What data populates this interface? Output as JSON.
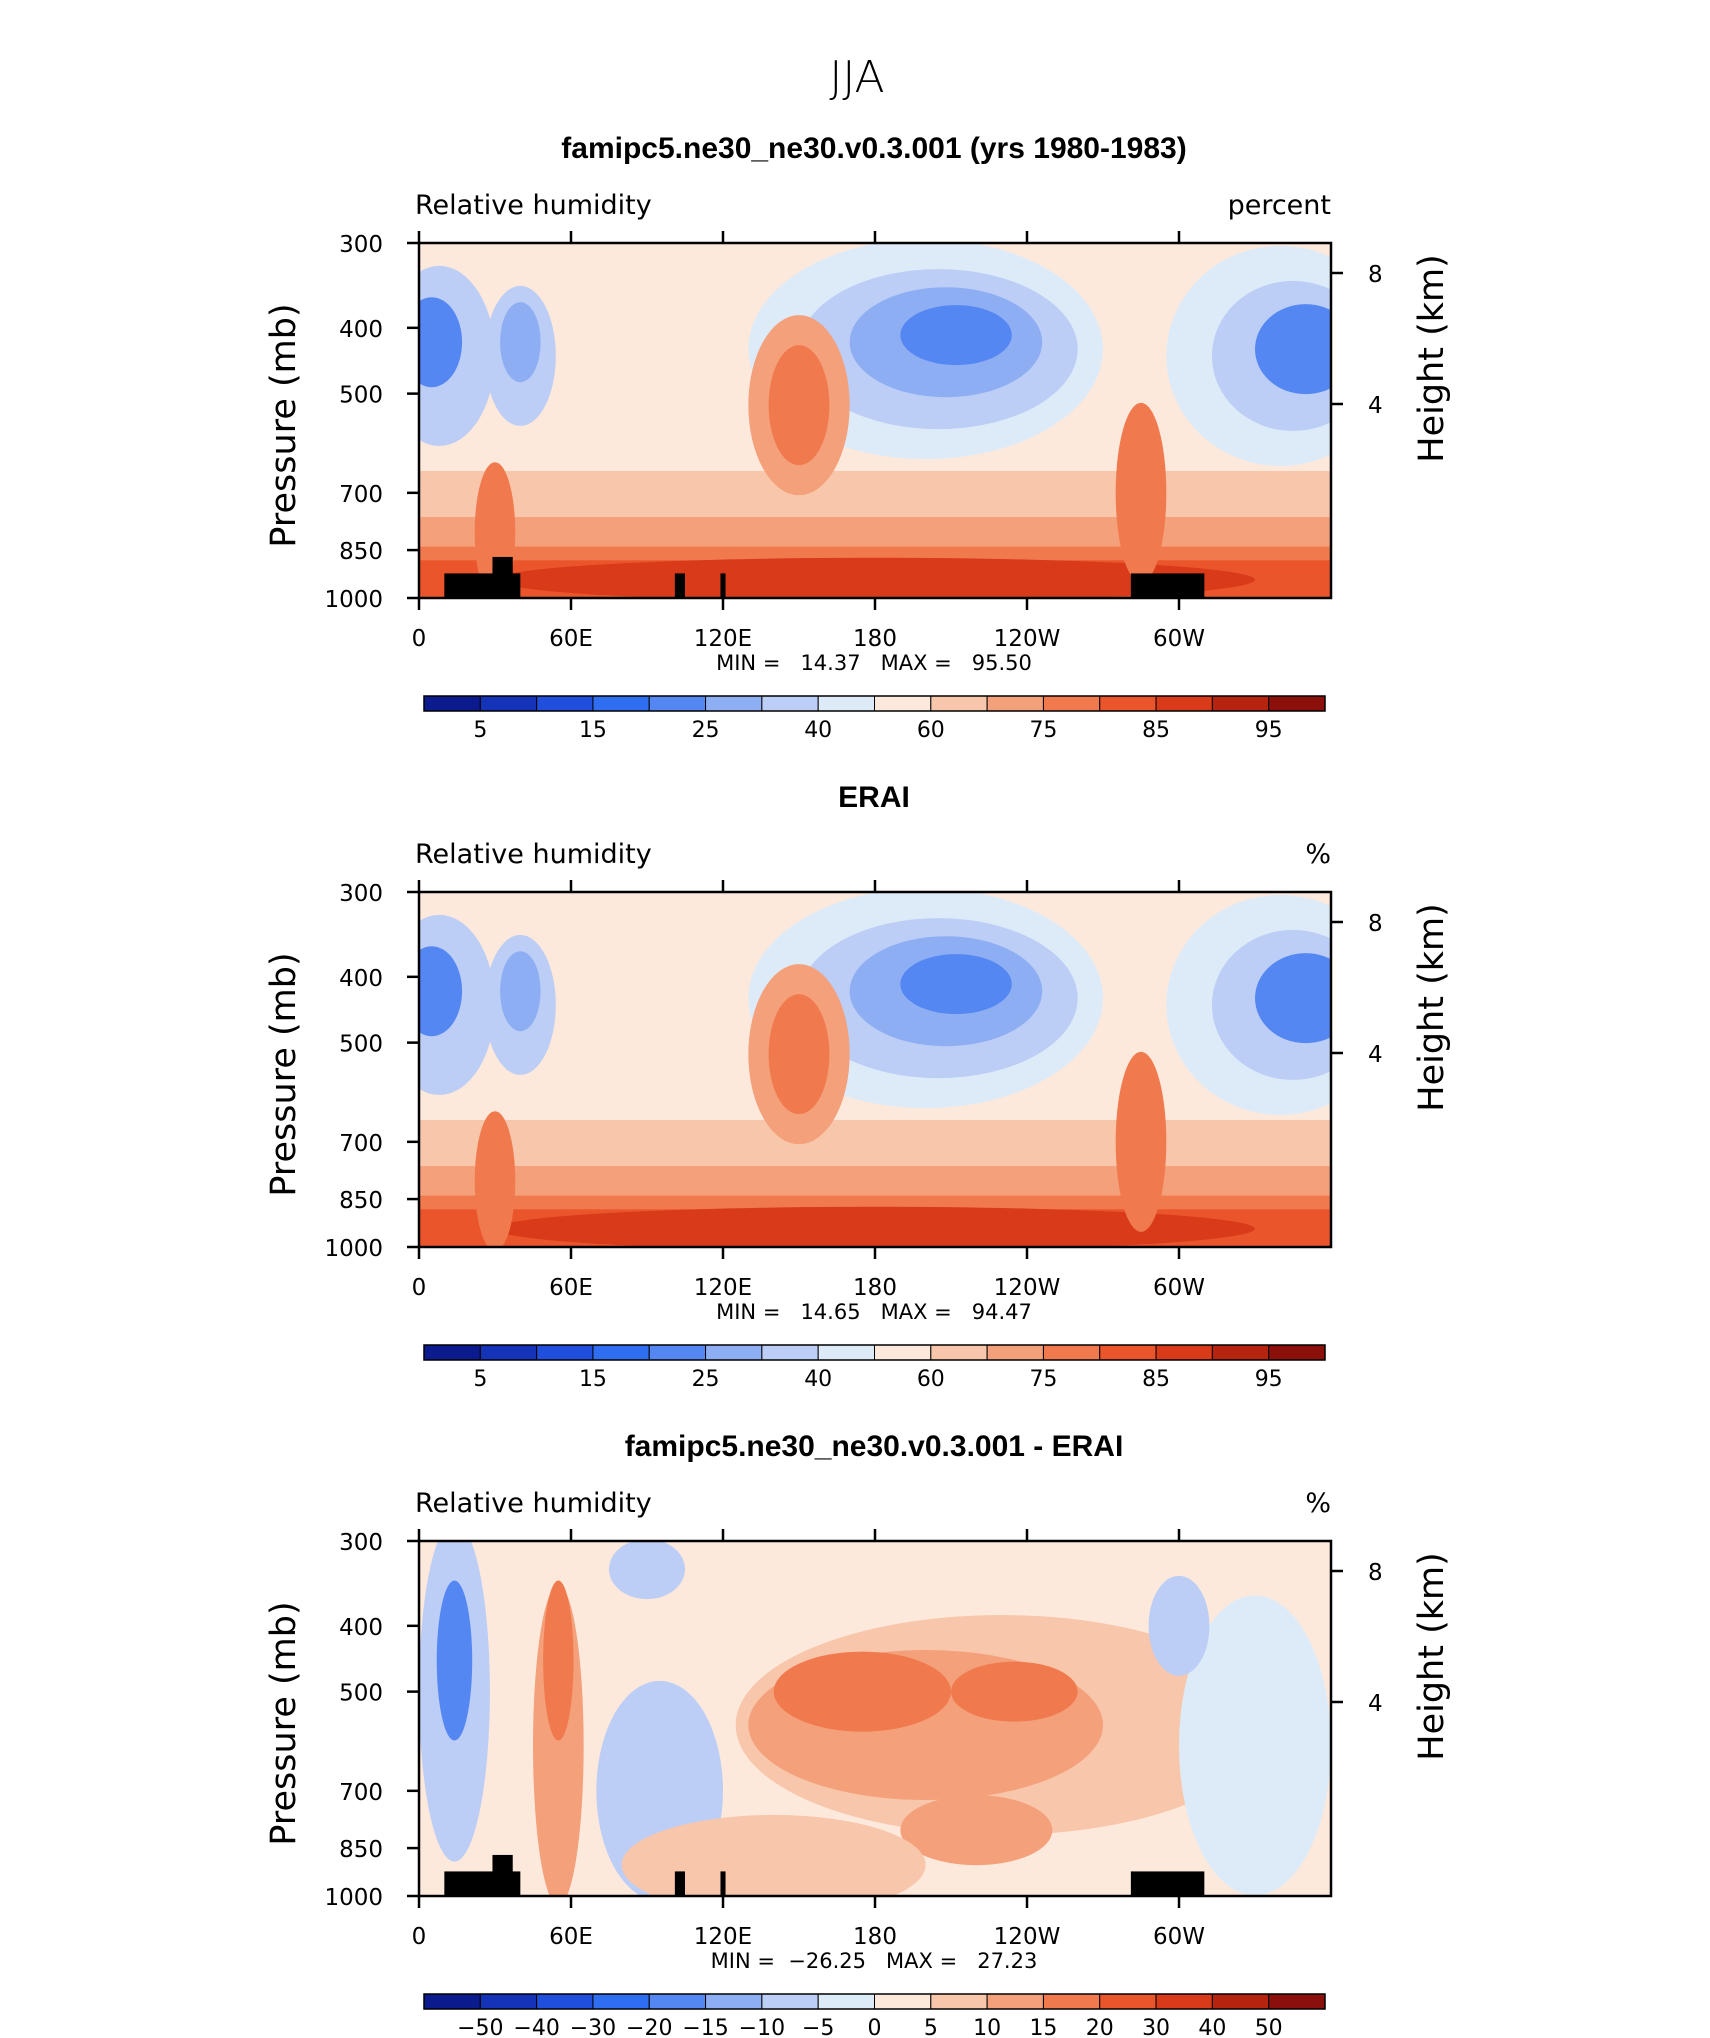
{
  "page_title": "JJA",
  "chart_data": [
    {
      "type": "heatmap",
      "title": "famipc5.ne30_ne30.v0.3.001 (yrs 1980-1983)",
      "left_label": "Relative humidity",
      "right_label": "percent",
      "ylabel": "Pressure (mb)",
      "ylabel_right": "Height (km)",
      "x_ticks": [
        "0",
        "60E",
        "120E",
        "180",
        "120W",
        "60W"
      ],
      "y_ticks": [
        "300",
        "400",
        "500",
        "700",
        "850",
        "1000"
      ],
      "y_right_ticks": [
        "8",
        "4"
      ],
      "stats_text": "MIN =   14.37   MAX =   95.50",
      "min": 14.37,
      "max": 95.5,
      "colorbar_labels": [
        "5",
        "15",
        "25",
        "40",
        "60",
        "75",
        "85",
        "95"
      ],
      "colorbar_colors": [
        "#0b1a8c",
        "#1533b8",
        "#1f4fdc",
        "#2f6ef0",
        "#5587f2",
        "#8eaef4",
        "#bccdf6",
        "#ddebf8",
        "#fde9dc",
        "#f8c6ab",
        "#f4a07a",
        "#f07a4e",
        "#ea552c",
        "#d83a1a",
        "#b62410",
        "#8b0f0a"
      ],
      "ylim": [
        1000,
        300
      ],
      "xlim": [
        0,
        360
      ],
      "has_topography": true
    },
    {
      "type": "heatmap",
      "title": "ERAI",
      "left_label": "Relative humidity",
      "right_label": "%",
      "ylabel": "Pressure (mb)",
      "ylabel_right": "Height (km)",
      "x_ticks": [
        "0",
        "60E",
        "120E",
        "180",
        "120W",
        "60W"
      ],
      "y_ticks": [
        "300",
        "400",
        "500",
        "700",
        "850",
        "1000"
      ],
      "y_right_ticks": [
        "8",
        "4"
      ],
      "stats_text": "MIN =   14.65   MAX =   94.47",
      "min": 14.65,
      "max": 94.47,
      "colorbar_labels": [
        "5",
        "15",
        "25",
        "40",
        "60",
        "75",
        "85",
        "95"
      ],
      "colorbar_colors": [
        "#0b1a8c",
        "#1533b8",
        "#1f4fdc",
        "#2f6ef0",
        "#5587f2",
        "#8eaef4",
        "#bccdf6",
        "#ddebf8",
        "#fde9dc",
        "#f8c6ab",
        "#f4a07a",
        "#f07a4e",
        "#ea552c",
        "#d83a1a",
        "#b62410",
        "#8b0f0a"
      ],
      "ylim": [
        1000,
        300
      ],
      "xlim": [
        0,
        360
      ],
      "has_topography": false
    },
    {
      "type": "heatmap",
      "title": "famipc5.ne30_ne30.v0.3.001 - ERAI",
      "left_label": "Relative humidity",
      "right_label": "%",
      "ylabel": "Pressure (mb)",
      "ylabel_right": "Height (km)",
      "x_ticks": [
        "0",
        "60E",
        "120E",
        "180",
        "120W",
        "60W"
      ],
      "y_ticks": [
        "300",
        "400",
        "500",
        "700",
        "850",
        "1000"
      ],
      "y_right_ticks": [
        "8",
        "4"
      ],
      "stats_text": "MIN =  −26.25   MAX =   27.23",
      "min": -26.25,
      "max": 27.23,
      "colorbar_labels": [
        "−50",
        "−40",
        "−30",
        "−20",
        "−15",
        "−10",
        "−5",
        "0",
        "5",
        "10",
        "15",
        "20",
        "30",
        "40",
        "50"
      ],
      "colorbar_colors": [
        "#0b1a8c",
        "#1533b8",
        "#1f4fdc",
        "#2f6ef0",
        "#5587f2",
        "#8eaef4",
        "#bccdf6",
        "#ddebf8",
        "#fde9dc",
        "#f8c6ab",
        "#f4a07a",
        "#f07a4e",
        "#ea552c",
        "#d83a1a",
        "#b62410",
        "#8b0f0a"
      ],
      "ylim": [
        1000,
        300
      ],
      "xlim": [
        0,
        360
      ],
      "has_topography": true
    }
  ]
}
